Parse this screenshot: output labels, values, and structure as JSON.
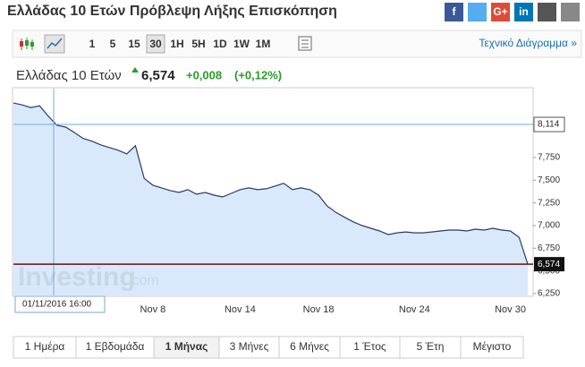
{
  "header": {
    "title": "Ελλάδας 10 Ετών Πρόβλεψη Λήξης Επισκόπηση",
    "social": [
      "f",
      "G+",
      "in"
    ]
  },
  "toolbar": {
    "intervals": [
      "1",
      "5",
      "15",
      "30",
      "1H",
      "5H",
      "1D",
      "1W",
      "1M"
    ],
    "active": "30",
    "link": "Τεχνικό Διάγραμμα »"
  },
  "quote": {
    "name": "Ελλάδας 10 Ετών",
    "last": "6,574",
    "change": "+0,008",
    "change_pct": "(+0,12%)"
  },
  "chart_data": {
    "type": "line",
    "watermark": "Investing",
    "watermark_suffix": ".com",
    "categories": [
      null,
      null,
      null,
      null,
      null,
      null,
      null,
      null,
      null,
      null,
      null,
      null,
      null,
      null,
      null,
      null,
      "Nov 8",
      null,
      null,
      null,
      null,
      null,
      null,
      null,
      null,
      null,
      "Nov 14",
      null,
      null,
      null,
      null,
      null,
      null,
      null,
      null,
      "Nov 18",
      null,
      null,
      null,
      null,
      null,
      null,
      null,
      null,
      null,
      null,
      "Nov 24",
      null,
      null,
      null,
      null,
      null,
      null,
      null,
      null,
      null,
      null,
      "Nov 30",
      null,
      null
    ],
    "series": [
      {
        "name": "Ελλάδας 10 Ετών",
        "color": "#2b3a67",
        "fill": "#d9e9fb",
        "values": [
          8350,
          8330,
          8300,
          8320,
          8205,
          8105,
          8085,
          8025,
          7960,
          7930,
          7890,
          7860,
          7830,
          7790,
          7880,
          7520,
          7445,
          7415,
          7385,
          7365,
          7395,
          7345,
          7365,
          7335,
          7315,
          7355,
          7395,
          7415,
          7395,
          7405,
          7435,
          7465,
          7395,
          7415,
          7395,
          7335,
          7215,
          7145,
          7090,
          7040,
          7000,
          6970,
          6940,
          6900,
          6920,
          6930,
          6920,
          6920,
          6930,
          6940,
          6950,
          6950,
          6940,
          6960,
          6950,
          6970,
          6950,
          6940,
          6870,
          6574
        ]
      }
    ],
    "ylim": [
      6230,
      8450
    ],
    "yticks": [
      {
        "value": 6250,
        "label": "6,250"
      },
      {
        "value": 6500,
        "label": "6,500"
      },
      {
        "value": 6750,
        "label": "6,750"
      },
      {
        "value": 7000,
        "label": "7,000"
      },
      {
        "value": 7250,
        "label": "7,250"
      },
      {
        "value": 7500,
        "label": "7,500"
      },
      {
        "value": 7750,
        "label": "7,750"
      }
    ],
    "last_line": {
      "value": 6574,
      "label": "6,574",
      "color": "#6b0f0f"
    },
    "crosshair": {
      "value": 8114,
      "label": "8,114",
      "date": "01/11/2016 16:00"
    }
  },
  "tabs": {
    "items": [
      "1 Ημέρα",
      "1 Εβδομάδα",
      "1 Μήνας",
      "3 Μήνες",
      "6 Μήνες",
      "1 Έτος",
      "5 Έτη",
      "Μέγιστο"
    ],
    "active": "1 Μήνας"
  }
}
